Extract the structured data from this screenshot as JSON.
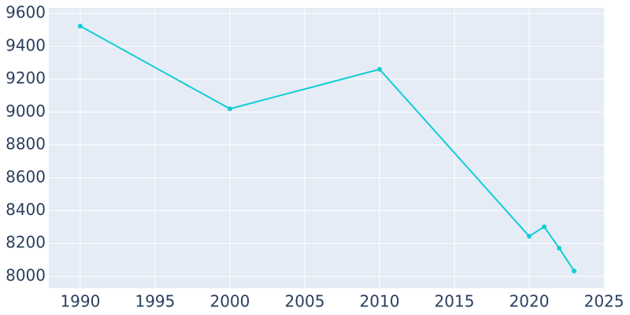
{
  "chart_data": {
    "type": "line",
    "x": [
      1990,
      2000,
      2010,
      2020,
      2021,
      2022,
      2023
    ],
    "series": [
      {
        "color": "#12cdd4",
        "values": [
          9523,
          9020,
          9260,
          8244,
          8302,
          8172,
          8033
        ]
      }
    ],
    "xlim": [
      1987.9,
      2025.05
    ],
    "xticks": [
      1990,
      1995,
      2000,
      2005,
      2010,
      2015,
      2020,
      2025
    ],
    "ylim": [
      7928,
      9634
    ],
    "yticks": [
      8000,
      8200,
      8400,
      8600,
      8800,
      9000,
      9200,
      9400,
      9600
    ],
    "grid": true
  }
}
